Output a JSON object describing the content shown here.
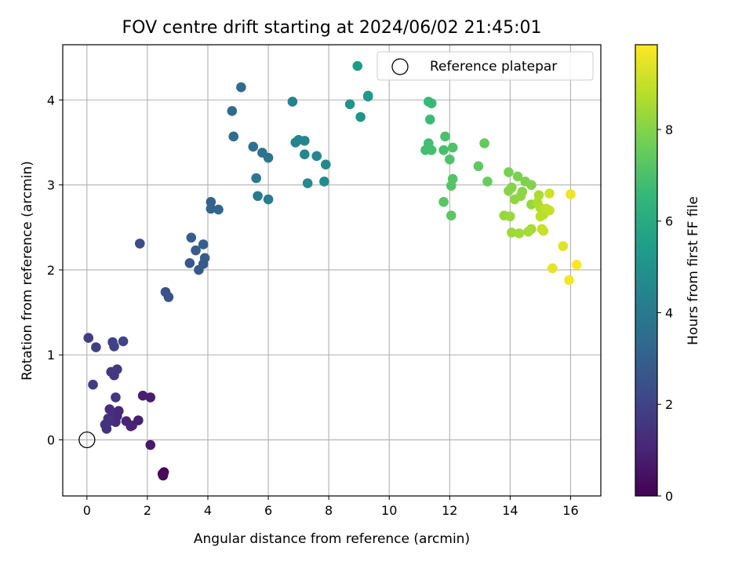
{
  "chart_data": {
    "type": "scatter",
    "title": "FOV centre drift starting at 2024/06/02 21:45:01",
    "xlabel": "Angular distance from reference (arcmin)",
    "ylabel": "Rotation from reference (arcmin)",
    "xlim": [
      -0.8,
      17.0
    ],
    "ylim": [
      -0.66,
      4.65
    ],
    "xticks": [
      0,
      2,
      4,
      6,
      8,
      10,
      12,
      14,
      16
    ],
    "yticks": [
      0,
      1,
      2,
      3,
      4
    ],
    "grid": true,
    "legend": {
      "placement": "top-right",
      "entries": [
        "Reference platepar"
      ]
    },
    "reference_point": {
      "x": 0,
      "y": 0
    },
    "colorbar": {
      "label": "Hours from first FF file",
      "range": [
        0,
        9.85
      ],
      "ticks": [
        0,
        2,
        4,
        6,
        8
      ],
      "colormap": "viridis",
      "stops": [
        "#440154",
        "#482878",
        "#3e4989",
        "#31688e",
        "#26828e",
        "#1f9e89",
        "#35b779",
        "#6ece58",
        "#b5de2b",
        "#fde725"
      ]
    },
    "series": [
      {
        "points": [
          {
            "x": 2.5,
            "y": -0.4,
            "t": 0.1
          },
          {
            "x": 2.55,
            "y": -0.38,
            "t": 0.2
          },
          {
            "x": 2.52,
            "y": -0.42,
            "t": 0.3
          },
          {
            "x": 2.1,
            "y": -0.06,
            "t": 0.7
          },
          {
            "x": 2.1,
            "y": 0.5,
            "t": 0.8
          },
          {
            "x": 1.85,
            "y": 0.52,
            "t": 0.85
          },
          {
            "x": 1.7,
            "y": 0.23,
            "t": 0.9
          },
          {
            "x": 1.5,
            "y": 0.17,
            "t": 0.95
          },
          {
            "x": 1.45,
            "y": 0.16,
            "t": 1.0
          },
          {
            "x": 1.3,
            "y": 0.22,
            "t": 1.05
          },
          {
            "x": 1.05,
            "y": 0.34,
            "t": 1.1
          },
          {
            "x": 1.0,
            "y": 0.28,
            "t": 1.15
          },
          {
            "x": 0.95,
            "y": 0.21,
            "t": 1.2
          },
          {
            "x": 0.85,
            "y": 0.27,
            "t": 1.25
          },
          {
            "x": 0.75,
            "y": 0.36,
            "t": 1.3
          },
          {
            "x": 0.75,
            "y": 0.22,
            "t": 1.35
          },
          {
            "x": 0.65,
            "y": 0.13,
            "t": 1.4
          },
          {
            "x": 0.6,
            "y": 0.18,
            "t": 1.45
          },
          {
            "x": 0.7,
            "y": 0.25,
            "t": 1.5
          },
          {
            "x": 0.95,
            "y": 0.5,
            "t": 1.55
          },
          {
            "x": 0.9,
            "y": 0.76,
            "t": 1.6
          },
          {
            "x": 0.8,
            "y": 0.8,
            "t": 1.65
          },
          {
            "x": 1.0,
            "y": 0.83,
            "t": 1.7
          },
          {
            "x": 0.2,
            "y": 0.65,
            "t": 1.75
          },
          {
            "x": 0.05,
            "y": 1.2,
            "t": 1.8
          },
          {
            "x": 0.3,
            "y": 1.09,
            "t": 1.85
          },
          {
            "x": 0.85,
            "y": 1.15,
            "t": 1.9
          },
          {
            "x": 0.9,
            "y": 1.1,
            "t": 1.95
          },
          {
            "x": 1.2,
            "y": 1.16,
            "t": 2.0
          },
          {
            "x": 1.75,
            "y": 2.31,
            "t": 2.3
          },
          {
            "x": 2.6,
            "y": 1.74,
            "t": 2.5
          },
          {
            "x": 2.7,
            "y": 1.68,
            "t": 2.55
          },
          {
            "x": 3.4,
            "y": 2.08,
            "t": 2.7
          },
          {
            "x": 3.7,
            "y": 2.0,
            "t": 2.75
          },
          {
            "x": 3.85,
            "y": 2.07,
            "t": 2.8
          },
          {
            "x": 3.9,
            "y": 2.14,
            "t": 2.85
          },
          {
            "x": 3.6,
            "y": 2.23,
            "t": 2.9
          },
          {
            "x": 3.45,
            "y": 2.38,
            "t": 2.95
          },
          {
            "x": 3.85,
            "y": 2.3,
            "t": 3.0
          },
          {
            "x": 4.1,
            "y": 2.8,
            "t": 3.1
          },
          {
            "x": 4.1,
            "y": 2.72,
            "t": 3.15
          },
          {
            "x": 4.35,
            "y": 2.71,
            "t": 3.2
          },
          {
            "x": 4.8,
            "y": 3.87,
            "t": 3.4
          },
          {
            "x": 5.1,
            "y": 4.15,
            "t": 3.45
          },
          {
            "x": 4.85,
            "y": 3.57,
            "t": 3.5
          },
          {
            "x": 5.5,
            "y": 3.45,
            "t": 3.6
          },
          {
            "x": 5.8,
            "y": 3.38,
            "t": 3.7
          },
          {
            "x": 6.0,
            "y": 3.32,
            "t": 3.8
          },
          {
            "x": 5.6,
            "y": 3.08,
            "t": 3.9
          },
          {
            "x": 5.65,
            "y": 2.87,
            "t": 4.0
          },
          {
            "x": 6.0,
            "y": 2.83,
            "t": 4.1
          },
          {
            "x": 6.8,
            "y": 3.98,
            "t": 4.3
          },
          {
            "x": 6.9,
            "y": 3.5,
            "t": 4.4
          },
          {
            "x": 7.0,
            "y": 3.53,
            "t": 4.45
          },
          {
            "x": 7.2,
            "y": 3.52,
            "t": 4.5
          },
          {
            "x": 7.2,
            "y": 3.36,
            "t": 4.55
          },
          {
            "x": 7.6,
            "y": 3.34,
            "t": 4.6
          },
          {
            "x": 7.9,
            "y": 3.24,
            "t": 4.65
          },
          {
            "x": 7.3,
            "y": 3.02,
            "t": 4.7
          },
          {
            "x": 7.85,
            "y": 3.04,
            "t": 4.75
          },
          {
            "x": 8.7,
            "y": 3.95,
            "t": 5.0
          },
          {
            "x": 9.05,
            "y": 3.8,
            "t": 5.1
          },
          {
            "x": 9.3,
            "y": 4.05,
            "t": 5.25
          },
          {
            "x": 9.3,
            "y": 4.04,
            "t": 5.3
          },
          {
            "x": 8.95,
            "y": 4.4,
            "t": 5.4
          },
          {
            "x": 11.3,
            "y": 3.98,
            "t": 6.6
          },
          {
            "x": 11.4,
            "y": 3.96,
            "t": 6.65
          },
          {
            "x": 11.35,
            "y": 3.77,
            "t": 6.7
          },
          {
            "x": 11.3,
            "y": 3.49,
            "t": 6.8
          },
          {
            "x": 11.2,
            "y": 3.41,
            "t": 6.85
          },
          {
            "x": 11.4,
            "y": 3.41,
            "t": 6.9
          },
          {
            "x": 11.8,
            "y": 3.41,
            "t": 6.95
          },
          {
            "x": 11.85,
            "y": 3.57,
            "t": 7.0
          },
          {
            "x": 12.1,
            "y": 3.44,
            "t": 7.05
          },
          {
            "x": 12.0,
            "y": 3.3,
            "t": 7.1
          },
          {
            "x": 12.1,
            "y": 3.07,
            "t": 7.15
          },
          {
            "x": 12.05,
            "y": 2.99,
            "t": 7.2
          },
          {
            "x": 11.8,
            "y": 2.8,
            "t": 7.25
          },
          {
            "x": 12.05,
            "y": 2.64,
            "t": 7.3
          },
          {
            "x": 12.95,
            "y": 3.22,
            "t": 7.4
          },
          {
            "x": 13.15,
            "y": 3.49,
            "t": 7.45
          },
          {
            "x": 13.25,
            "y": 3.04,
            "t": 7.5
          },
          {
            "x": 13.95,
            "y": 3.15,
            "t": 7.8
          },
          {
            "x": 14.25,
            "y": 3.1,
            "t": 7.85
          },
          {
            "x": 14.5,
            "y": 3.04,
            "t": 7.9
          },
          {
            "x": 14.7,
            "y": 3.0,
            "t": 7.95
          },
          {
            "x": 14.05,
            "y": 2.97,
            "t": 8.0
          },
          {
            "x": 13.95,
            "y": 2.93,
            "t": 8.05
          },
          {
            "x": 14.4,
            "y": 2.92,
            "t": 8.1
          },
          {
            "x": 14.35,
            "y": 2.87,
            "t": 8.15
          },
          {
            "x": 14.15,
            "y": 2.83,
            "t": 8.2
          },
          {
            "x": 14.7,
            "y": 2.77,
            "t": 8.25
          },
          {
            "x": 13.8,
            "y": 2.64,
            "t": 8.3
          },
          {
            "x": 14.0,
            "y": 2.63,
            "t": 8.35
          },
          {
            "x": 14.05,
            "y": 2.44,
            "t": 8.4
          },
          {
            "x": 14.3,
            "y": 2.43,
            "t": 8.45
          },
          {
            "x": 14.6,
            "y": 2.45,
            "t": 8.5
          },
          {
            "x": 14.7,
            "y": 2.48,
            "t": 8.55
          },
          {
            "x": 14.95,
            "y": 2.88,
            "t": 8.6
          },
          {
            "x": 14.9,
            "y": 2.79,
            "t": 8.65
          },
          {
            "x": 15.0,
            "y": 2.73,
            "t": 8.7
          },
          {
            "x": 15.05,
            "y": 2.71,
            "t": 8.75
          },
          {
            "x": 15.1,
            "y": 2.65,
            "t": 8.8
          },
          {
            "x": 15.0,
            "y": 2.63,
            "t": 8.85
          },
          {
            "x": 15.2,
            "y": 2.72,
            "t": 8.9
          },
          {
            "x": 15.3,
            "y": 2.7,
            "t": 8.95
          },
          {
            "x": 15.05,
            "y": 2.48,
            "t": 9.0
          },
          {
            "x": 15.1,
            "y": 2.46,
            "t": 9.05
          },
          {
            "x": 15.3,
            "y": 2.9,
            "t": 9.1
          },
          {
            "x": 15.75,
            "y": 2.28,
            "t": 9.4
          },
          {
            "x": 15.4,
            "y": 2.02,
            "t": 9.5
          },
          {
            "x": 16.0,
            "y": 2.89,
            "t": 9.6
          },
          {
            "x": 15.95,
            "y": 1.88,
            "t": 9.7
          },
          {
            "x": 16.2,
            "y": 2.06,
            "t": 9.8
          }
        ]
      }
    ]
  }
}
